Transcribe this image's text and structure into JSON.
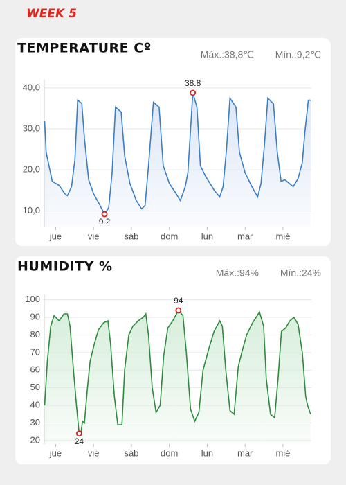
{
  "page_title": "WEEK 5",
  "chart_data": [
    {
      "type": "line",
      "title": "TEMPERATURE Cº",
      "max_label": "Máx.:38,8℃",
      "min_label": "Mín.:9,2℃",
      "xlim": [
        -0.3,
        6.75
      ],
      "xticks": [
        {
          "value": 0,
          "label": "jue"
        },
        {
          "value": 1,
          "label": "vie"
        },
        {
          "value": 2,
          "label": "sáb"
        },
        {
          "value": 3,
          "label": "dom"
        },
        {
          "value": 4,
          "label": "lun"
        },
        {
          "value": 5,
          "label": "mar"
        },
        {
          "value": 6,
          "label": "mié"
        }
      ],
      "ylim": [
        6,
        42
      ],
      "yticks": [
        {
          "value": 10,
          "label": "10,0"
        },
        {
          "value": 20,
          "label": "20,0"
        },
        {
          "value": 30,
          "label": "30,0"
        },
        {
          "value": 40,
          "label": "40,0"
        }
      ],
      "grid": true,
      "x": [
        -0.29,
        -0.25,
        -0.09,
        0.09,
        0.24,
        0.31,
        0.42,
        0.51,
        0.58,
        0.69,
        0.76,
        0.87,
        1.0,
        1.15,
        1.29,
        1.4,
        1.49,
        1.58,
        1.73,
        1.82,
        1.96,
        2.13,
        2.27,
        2.36,
        2.45,
        2.58,
        2.73,
        2.84,
        3.0,
        3.18,
        3.29,
        3.42,
        3.49,
        3.62,
        3.73,
        3.82,
        3.96,
        4.18,
        4.33,
        4.42,
        4.51,
        4.6,
        4.76,
        4.85,
        5.0,
        5.18,
        5.33,
        5.42,
        5.51,
        5.6,
        5.75,
        5.85,
        5.95,
        6.05,
        6.27,
        6.4,
        6.51,
        6.58,
        6.67,
        6.73
      ],
      "series": [
        {
          "color": "#3a7ec6",
          "fill": "#dbe6f6",
          "values": [
            31.9,
            24.3,
            17.2,
            16.2,
            14.2,
            13.7,
            15.9,
            22.6,
            37,
            36.2,
            27.7,
            17.6,
            14.2,
            11.7,
            9.2,
            10.8,
            19.3,
            35.3,
            34.1,
            23.5,
            16.7,
            12.5,
            10.5,
            11.3,
            21,
            36.5,
            35.3,
            21,
            16.7,
            14.2,
            12.5,
            15.9,
            19.3,
            38.8,
            35.3,
            21,
            18.4,
            15.1,
            13.4,
            15.9,
            25.2,
            37.5,
            35.3,
            24.3,
            19.3,
            15.9,
            13.4,
            16.7,
            26,
            37.5,
            36.1,
            24.3,
            17.2,
            17.6,
            15.9,
            17.9,
            21.8,
            29.4,
            37,
            37
          ]
        }
      ],
      "highlights": [
        {
          "x": 3.62,
          "y": 38.8
        },
        {
          "x": 1.29,
          "y": 9.2
        }
      ]
    },
    {
      "type": "line",
      "title": "HUMIDITY %",
      "max_label": "Máx.:94%",
      "min_label": "Mín.:24%",
      "xlim": [
        -0.3,
        6.75
      ],
      "xticks": [
        {
          "value": 0,
          "label": "jue"
        },
        {
          "value": 1,
          "label": "vie"
        },
        {
          "value": 2,
          "label": "sáb"
        },
        {
          "value": 3,
          "label": "dom"
        },
        {
          "value": 4,
          "label": "lun"
        },
        {
          "value": 5,
          "label": "mar"
        },
        {
          "value": 6,
          "label": "mié"
        }
      ],
      "ylim": [
        18,
        103
      ],
      "yticks": [
        20,
        30,
        40,
        50,
        60,
        70,
        80,
        90,
        100
      ],
      "grid": true,
      "x": [
        -0.29,
        -0.22,
        -0.13,
        -0.04,
        0.09,
        0.22,
        0.31,
        0.38,
        0.47,
        0.55,
        0.62,
        0.67,
        0.71,
        0.76,
        0.84,
        0.91,
        1.02,
        1.13,
        1.27,
        1.38,
        1.45,
        1.55,
        1.64,
        1.75,
        1.82,
        1.93,
        2.04,
        2.18,
        2.31,
        2.38,
        2.45,
        2.55,
        2.65,
        2.76,
        2.85,
        2.96,
        3.09,
        3.24,
        3.36,
        3.45,
        3.56,
        3.67,
        3.78,
        3.89,
        4.04,
        4.18,
        4.33,
        4.4,
        4.49,
        4.6,
        4.71,
        4.82,
        4.91,
        5.04,
        5.2,
        5.38,
        5.49,
        5.56,
        5.67,
        5.78,
        5.87,
        5.96,
        6.07,
        6.18,
        6.29,
        6.4,
        6.51,
        6.6,
        6.65,
        6.73
      ],
      "series": [
        {
          "color": "#2e8b3e",
          "fill": "#d7eedb",
          "values": [
            40,
            65,
            85,
            91,
            88,
            92,
            92,
            85,
            60,
            40,
            24,
            25,
            31,
            30,
            50,
            65,
            75,
            83,
            87,
            88,
            75,
            45,
            29,
            29,
            60,
            80,
            85,
            88,
            90,
            92,
            80,
            50,
            36,
            40,
            68,
            84,
            88,
            94,
            91,
            70,
            38,
            31,
            36,
            60,
            72,
            82,
            88,
            85,
            60,
            37,
            35,
            62,
            70,
            80,
            87,
            93,
            85,
            55,
            35,
            33,
            55,
            82,
            84,
            88,
            90,
            86,
            70,
            45,
            40,
            35
          ]
        }
      ],
      "highlights": [
        {
          "x": 3.24,
          "y": 94
        },
        {
          "x": 0.62,
          "y": 24
        }
      ]
    }
  ]
}
